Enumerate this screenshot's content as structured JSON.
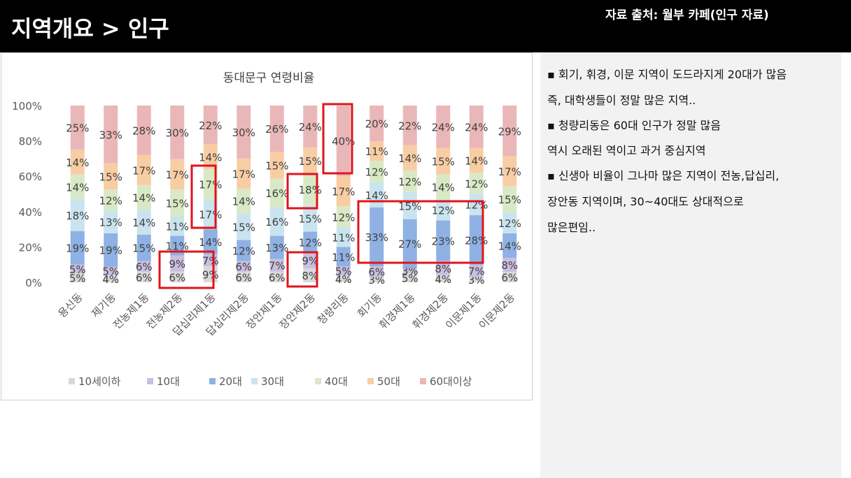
{
  "header": {
    "title": "지역개요 > 인구",
    "source": "자료 출처: 월부 카페(인구 자료)"
  },
  "notes": [
    "▪ 회기, 휘경, 이문 지역이 도드라지게 20대가 많음",
    "즉, 대학생들이 정말 많은 지역..",
    "▪ 청량리동은 60대 인구가 정말 많음",
    "  역시 오래된 역이고 과거 중심지역",
    "▪ 신생아 비율이 그나마 많은 지역이 전농,답십리,",
    "장안동 지역이며, 30~40대도 상대적으로",
    "많은편임.."
  ],
  "chart_data": {
    "type": "bar",
    "stacked": true,
    "percent_stacked": true,
    "title": "동대문구 연령비율",
    "ylim": [
      0,
      100
    ],
    "yticks": [
      "0%",
      "20%",
      "40%",
      "60%",
      "80%",
      "100%"
    ],
    "legend_position": "bottom",
    "categories": [
      "용신동",
      "제기동",
      "전농제1동",
      "전농제2동",
      "답십리제1동",
      "답십리제2동",
      "장안제1동",
      "장안제2동",
      "청량리동",
      "회기동",
      "휘경제1동",
      "휘경제2동",
      "이문제1동",
      "이문제2동"
    ],
    "series": [
      {
        "name": "10세이하",
        "color": "#d9d9d9",
        "values": [
          5,
          4,
          6,
          6,
          9,
          6,
          6,
          8,
          4,
          3,
          5,
          4,
          3,
          6
        ]
      },
      {
        "name": "10대",
        "color": "#c9bfe0",
        "values": [
          5,
          5,
          6,
          9,
          7,
          6,
          7,
          9,
          5,
          6,
          3,
          8,
          7,
          8
        ]
      },
      {
        "name": "20대",
        "color": "#8fb1e3",
        "values": [
          19,
          19,
          15,
          11,
          14,
          12,
          13,
          12,
          11,
          33,
          27,
          23,
          28,
          14
        ]
      },
      {
        "name": "30대",
        "color": "#c9e4ef",
        "values": [
          18,
          13,
          14,
          11,
          17,
          15,
          16,
          15,
          11,
          14,
          15,
          12,
          12,
          12
        ]
      },
      {
        "name": "40대",
        "color": "#d9e9c5",
        "values": [
          14,
          12,
          14,
          15,
          17,
          14,
          16,
          18,
          12,
          12,
          12,
          14,
          12,
          15
        ]
      },
      {
        "name": "50대",
        "color": "#f9cda3",
        "values": [
          14,
          15,
          17,
          17,
          14,
          17,
          15,
          15,
          17,
          11,
          14,
          15,
          14,
          17
        ]
      },
      {
        "name": "60대이상",
        "color": "#eab7b9",
        "values": [
          25,
          33,
          28,
          30,
          22,
          30,
          26,
          24,
          40,
          20,
          22,
          24,
          24,
          29
        ]
      }
    ],
    "highlight_color": "#e0141b"
  }
}
